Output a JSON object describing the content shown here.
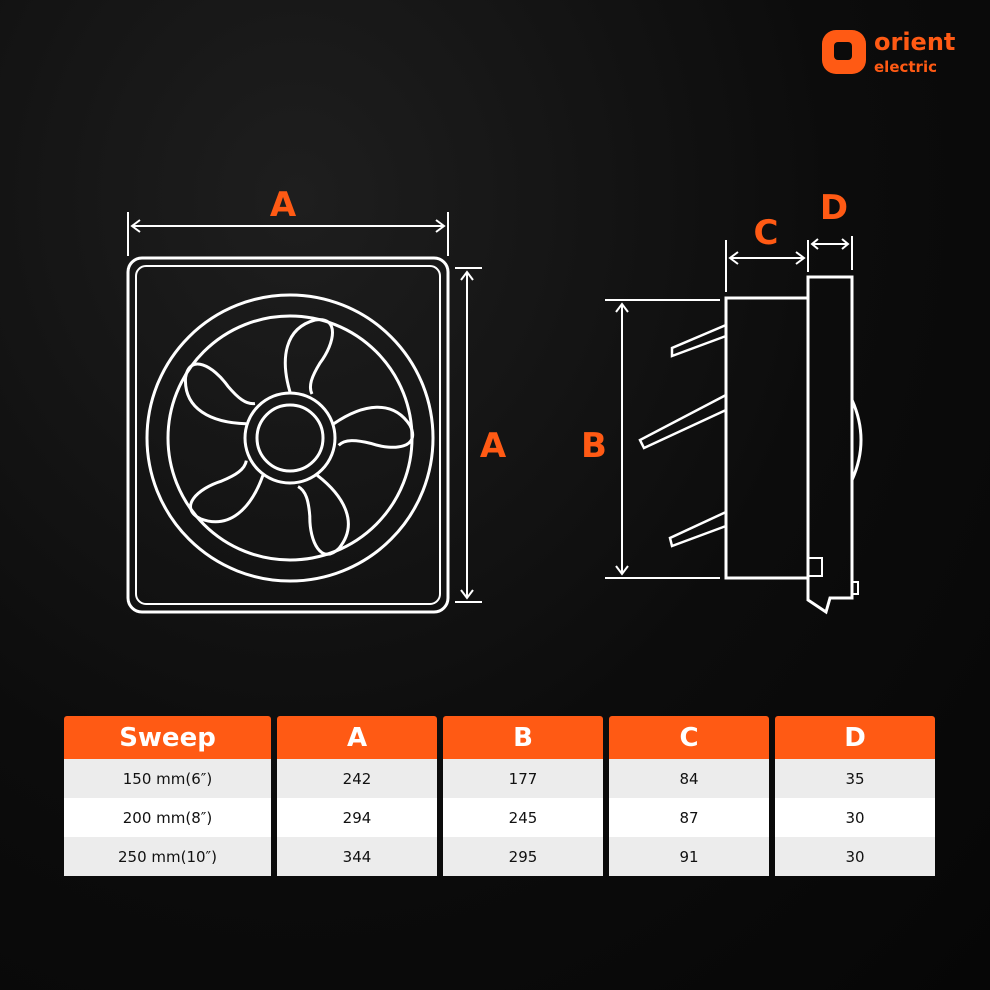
{
  "brand": {
    "line1": "orient",
    "line2": "electric",
    "color": "#ff5a14"
  },
  "diagram": {
    "front_labels": {
      "width": "A",
      "height": "A"
    },
    "side_labels": {
      "height": "B",
      "depth": "C",
      "plate": "D"
    }
  },
  "table": {
    "headers": [
      "Sweep",
      "A",
      "B",
      "C",
      "D"
    ],
    "rows": [
      [
        "150 mm(6″)",
        "242",
        "177",
        "84",
        "35"
      ],
      [
        "200 mm(8″)",
        "294",
        "245",
        "87",
        "30"
      ],
      [
        "250 mm(10″)",
        "344",
        "295",
        "91",
        "30"
      ]
    ]
  },
  "colors": {
    "accent": "#ff5a14",
    "line": "#ffffff",
    "background": "#0b0b0b"
  }
}
